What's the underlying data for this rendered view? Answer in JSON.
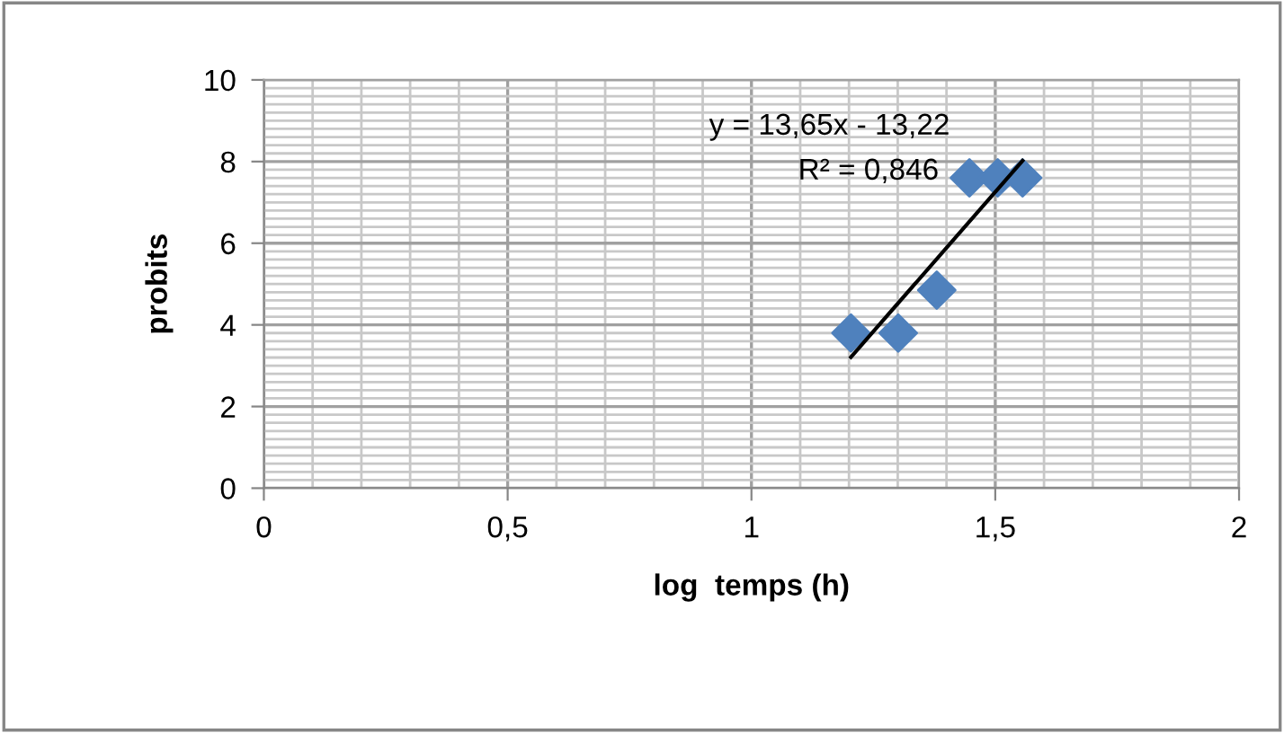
{
  "chart_data": {
    "type": "scatter",
    "xlabel": "log  temps (h)",
    "ylabel": "probits",
    "xlim": [
      0,
      2
    ],
    "ylim": [
      0,
      10
    ],
    "xticks": [
      0,
      {
        "value": 0.5,
        "label": "0,5"
      },
      1,
      {
        "value": 1.5,
        "label": "1,5"
      },
      2
    ],
    "yticks": [
      0,
      2,
      4,
      6,
      8,
      10
    ],
    "grid": true,
    "marker": "diamond",
    "legend": false,
    "x": [
      1.204,
      1.301,
      1.38,
      1.447,
      1.505,
      1.556
    ],
    "series": [
      {
        "color": "#4f81bd",
        "values": [
          3.8,
          3.8,
          4.85,
          7.6,
          7.6,
          7.6
        ]
      },
      {
        "type": "line",
        "color": "#000000",
        "marker": "none",
        "x": [
          1.204,
          1.556
        ],
        "values": [
          3.21,
          8.02
        ]
      }
    ],
    "annotations": [
      "y = 13,65x - 13,22",
      "R² = 0,846"
    ]
  }
}
